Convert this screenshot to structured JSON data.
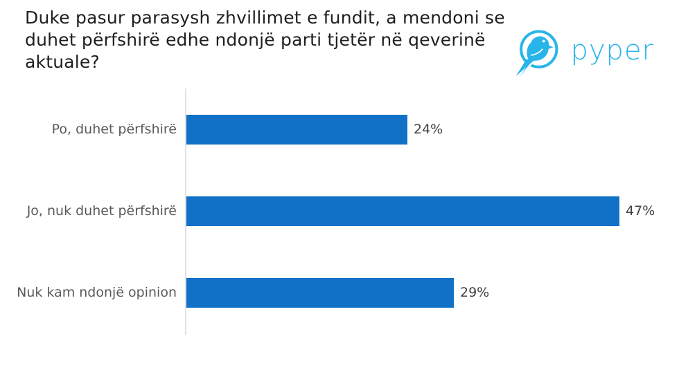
{
  "title": {
    "lines": [
      "Duke pasur parasysh zhvillimet e fundit, a mendoni se",
      "duhet përfshirë edhe ndonjë parti tjetër në qeverinë",
      "aktuale?"
    ]
  },
  "logo": {
    "text": "pyper",
    "icon": "pyper-bird-icon",
    "color": "#29B5EA"
  },
  "chart_data": {
    "type": "bar",
    "orientation": "horizontal",
    "categories": [
      "Po, duhet përfshirë",
      "Jo, nuk duhet përfshirë",
      "Nuk kam ndonjë opinion"
    ],
    "values": [
      24,
      47,
      29
    ],
    "value_labels": [
      "24%",
      "47%",
      "29%"
    ],
    "unit": "%",
    "xlim": [
      0,
      50
    ],
    "grid": false,
    "legend": false,
    "bar_color": "#1171C6",
    "axis_line_color": "#E2E2E2",
    "category_label_color": "#595959",
    "value_label_color": "#404040"
  }
}
